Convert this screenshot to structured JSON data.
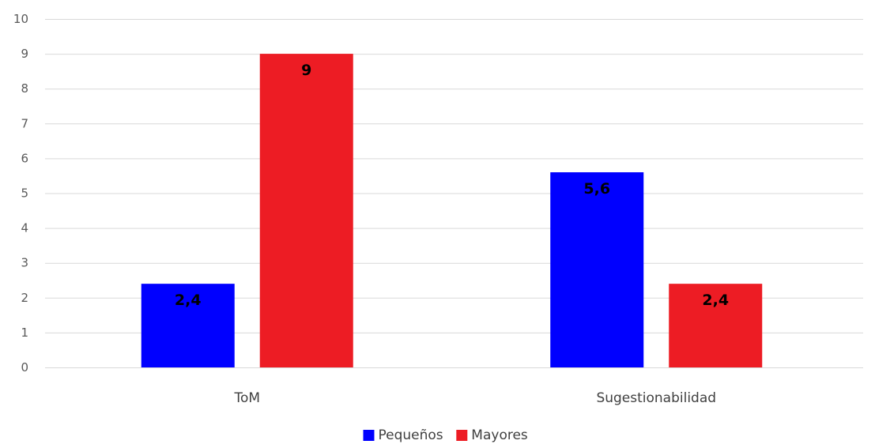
{
  "chart_data": {
    "type": "bar",
    "categories": [
      "ToM",
      "Sugestionabilidad"
    ],
    "series": [
      {
        "name": "Pequeños",
        "color": "#0000ff",
        "values": [
          2.4,
          5.6
        ],
        "labels": [
          "2,4",
          "5,6"
        ]
      },
      {
        "name": "Mayores",
        "color": "#ed1c24",
        "values": [
          9,
          2.4
        ],
        "labels": [
          "9",
          "2,4"
        ]
      }
    ],
    "ylim": [
      0,
      10
    ],
    "yticks": [
      0,
      1,
      2,
      3,
      4,
      5,
      6,
      7,
      8,
      9,
      10
    ],
    "title": "",
    "xlabel": "",
    "ylabel": "",
    "grid": true,
    "legend": "bottom"
  }
}
